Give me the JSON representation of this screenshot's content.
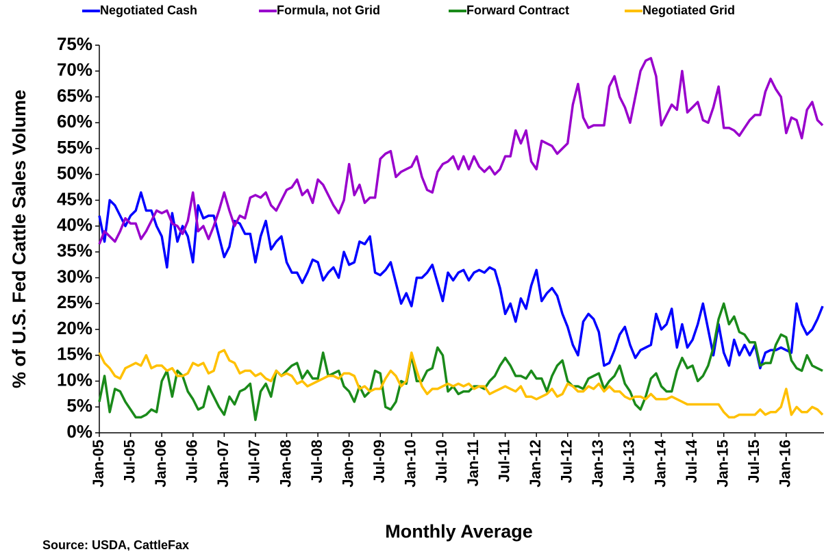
{
  "chart_data": {
    "type": "line",
    "x_label": "Monthly Average",
    "y_label": "% of U.S. Fed Cattle Sales Volume",
    "source": "Source: USDA, CattleFax",
    "legend": "top",
    "categories": [
      "Jan-05",
      null,
      null,
      null,
      null,
      null,
      "Jul-05",
      null,
      null,
      null,
      null,
      null,
      "Jan-06",
      null,
      null,
      null,
      null,
      null,
      "Jul-06",
      null,
      null,
      null,
      null,
      null,
      "Jan-07",
      null,
      null,
      null,
      null,
      null,
      "Jul-07",
      null,
      null,
      null,
      null,
      null,
      "Jan-08",
      null,
      null,
      null,
      null,
      null,
      "Jul-08",
      null,
      null,
      null,
      null,
      null,
      "Jan-09",
      null,
      null,
      null,
      null,
      null,
      "Jul-09",
      null,
      null,
      null,
      null,
      null,
      "Jan-10",
      null,
      null,
      null,
      null,
      null,
      "Jul-10",
      null,
      null,
      null,
      null,
      null,
      "Jan-11",
      null,
      null,
      null,
      null,
      null,
      "Jul-11",
      null,
      null,
      null,
      null,
      null,
      "Jan-12",
      null,
      null,
      null,
      null,
      null,
      "Jul-12",
      null,
      null,
      null,
      null,
      null,
      "Jan-13",
      null,
      null,
      null,
      null,
      null,
      "Jul-13",
      null,
      null,
      null,
      null,
      null,
      "Jan-14",
      null,
      null,
      null,
      null,
      null,
      "Jul-14",
      null,
      null,
      null,
      null,
      null,
      "Jan-15",
      null,
      null,
      null,
      null,
      null,
      "Jul-15",
      null,
      null,
      null,
      null,
      null,
      "Jan-16",
      null,
      null,
      null,
      null,
      null,
      null,
      null
    ],
    "ylim": [
      0,
      75
    ],
    "yticks": [
      {
        "value": 0,
        "label": "0%"
      },
      {
        "value": 5,
        "label": "5%"
      },
      {
        "value": 10,
        "label": "10%"
      },
      {
        "value": 15,
        "label": "15%"
      },
      {
        "value": 20,
        "label": "20%"
      },
      {
        "value": 25,
        "label": "25%"
      },
      {
        "value": 30,
        "label": "30%"
      },
      {
        "value": 35,
        "label": "35%"
      },
      {
        "value": 40,
        "label": "40%"
      },
      {
        "value": 45,
        "label": "45%"
      },
      {
        "value": 50,
        "label": "50%"
      },
      {
        "value": 55,
        "label": "55%"
      },
      {
        "value": 60,
        "label": "60%"
      },
      {
        "value": 65,
        "label": "65%"
      },
      {
        "value": 70,
        "label": "70%"
      },
      {
        "value": 75,
        "label": "75%"
      }
    ],
    "series": [
      {
        "name": "Negotiated Cash",
        "color": "#0000ff",
        "values": [
          42,
          37,
          45,
          44,
          42,
          40,
          42,
          43,
          46.5,
          43,
          43,
          40,
          38,
          32,
          42.5,
          37,
          40,
          38,
          33,
          44,
          41.5,
          42,
          42,
          38,
          34,
          36,
          41,
          40.5,
          38.5,
          38.5,
          33,
          38,
          41,
          35.5,
          37,
          38,
          33,
          31,
          31,
          29,
          31,
          33.5,
          33,
          29.5,
          31,
          32,
          30,
          35,
          32.5,
          33,
          37,
          36.5,
          38,
          31,
          30.5,
          31.5,
          33,
          29,
          25,
          27,
          24.5,
          30,
          30,
          31,
          32.5,
          29,
          25.5,
          31,
          29.5,
          31,
          31.5,
          29.5,
          31,
          31.5,
          31,
          32,
          31.5,
          28,
          23,
          25,
          21.5,
          26,
          24,
          28.5,
          31.5,
          25.5,
          27,
          28,
          26.5,
          23,
          20.5,
          17,
          15,
          21.5,
          23,
          22,
          19.5,
          13,
          13.5,
          16,
          19,
          20.5,
          17,
          14.5,
          16,
          16.5,
          17,
          23,
          20,
          21,
          24,
          16.5,
          21,
          16.5,
          18,
          21,
          25,
          20,
          15,
          21,
          15.5,
          13,
          18,
          15,
          17,
          15,
          17,
          12.5,
          15.5,
          16,
          16,
          16.5,
          16,
          15.5,
          25,
          21,
          19,
          20,
          22,
          24.5
        ]
      },
      {
        "name": "Formula, not Grid",
        "color": "#9900cc",
        "values": [
          36.5,
          39,
          38,
          37,
          39,
          41.5,
          40.5,
          40.5,
          37.5,
          39,
          41,
          43,
          42.5,
          43,
          40.5,
          40,
          38.5,
          41,
          46.5,
          39,
          40,
          37.5,
          40,
          43,
          46.5,
          43,
          40,
          42,
          41.5,
          45.5,
          46,
          45.5,
          46.5,
          44,
          43,
          45,
          47,
          47.5,
          49,
          46,
          47,
          44.5,
          49,
          48,
          46,
          44,
          42.5,
          45,
          52,
          46,
          48,
          44.5,
          45.5,
          45.5,
          53,
          54,
          54.5,
          49.5,
          50.5,
          51,
          51.5,
          53.5,
          49.5,
          47,
          46.5,
          50.5,
          52,
          52.5,
          53.5,
          51,
          53.5,
          51,
          53.5,
          51.5,
          50.5,
          51.5,
          50,
          51,
          53.5,
          53.5,
          58.5,
          56,
          58.5,
          52.5,
          51,
          56.5,
          56,
          55.5,
          54,
          55,
          56,
          63.5,
          67.5,
          61,
          59,
          59.5,
          59.5,
          59.5,
          67,
          69,
          65,
          63,
          60,
          65,
          70,
          72,
          72.5,
          69,
          59.5,
          61.5,
          63.5,
          62.5,
          70,
          62,
          63,
          64,
          60.5,
          60,
          63,
          67,
          59,
          59,
          58.5,
          57.5,
          59,
          60.5,
          61.5,
          61.5,
          66,
          68.5,
          66.5,
          65,
          58,
          61,
          60.5,
          57,
          62.5,
          64,
          60.5,
          59.5
        ]
      },
      {
        "name": "Forward Contract",
        "color": "#1a8a1a",
        "values": [
          6,
          11,
          4,
          8.5,
          8,
          6,
          4.5,
          3,
          3,
          3.5,
          4.5,
          4,
          10,
          12,
          7,
          12,
          11,
          8,
          6.5,
          4.5,
          5,
          9,
          7,
          5,
          3.5,
          7,
          5.5,
          8,
          8.5,
          9.5,
          2.5,
          8,
          9.5,
          7,
          12,
          11,
          12,
          13,
          13.5,
          10.5,
          12,
          10.5,
          10.5,
          15.5,
          11,
          11.5,
          12,
          9,
          8,
          6,
          9,
          7,
          8,
          12,
          11.5,
          5,
          4.5,
          6,
          10,
          9.5,
          15,
          10,
          10,
          12,
          12.5,
          16.5,
          15,
          8,
          9,
          7.5,
          8,
          8,
          9,
          9,
          8.5,
          10,
          11,
          13,
          14.5,
          13,
          11,
          11,
          10.5,
          12,
          10.5,
          10.5,
          8,
          11,
          13,
          14,
          10,
          9,
          9,
          8.5,
          10.5,
          11,
          11.5,
          8.5,
          10,
          11,
          13,
          9.5,
          8,
          5.5,
          4.5,
          7,
          10.5,
          11.5,
          9,
          8,
          8,
          12,
          14.5,
          12.5,
          13,
          10,
          11,
          13,
          16.5,
          22,
          25,
          21,
          22.5,
          19.5,
          19,
          17.5,
          17.5,
          13,
          13.5,
          13.5,
          17,
          19,
          18.5,
          14,
          12.5,
          12,
          15,
          13,
          12.5,
          12
        ]
      },
      {
        "name": "Negotiated Grid",
        "color": "#ffc000",
        "values": [
          15.5,
          13.5,
          12.5,
          11,
          10.5,
          12.5,
          13,
          13.5,
          13,
          15,
          12.5,
          13,
          13,
          12,
          12.5,
          11,
          11,
          11.5,
          13.5,
          13,
          13.5,
          11.5,
          12,
          15.5,
          16,
          14,
          13.5,
          11.5,
          12,
          12,
          11,
          11.5,
          10.5,
          10,
          12,
          11,
          11.5,
          11,
          9.5,
          10,
          9,
          9.5,
          10,
          10.5,
          11,
          11,
          10.5,
          11.5,
          11.5,
          11,
          8.5,
          9,
          8,
          8.5,
          8.5,
          10.5,
          12,
          11,
          9,
          10,
          15.5,
          12,
          9,
          7.5,
          8.5,
          8.5,
          9,
          9.5,
          9,
          9.5,
          9,
          9.5,
          8.5,
          9,
          9,
          7.5,
          8,
          8.5,
          9,
          8.5,
          8,
          9,
          7,
          7,
          6.5,
          7,
          7.5,
          8.5,
          7,
          7.5,
          9.5,
          9,
          8,
          8,
          9,
          8.5,
          9.5,
          8,
          9,
          8,
          8,
          7,
          6.5,
          7,
          7,
          6.5,
          7.5,
          6.5,
          6.5,
          6.5,
          7,
          6.5,
          6,
          5.5,
          5.5,
          5.5,
          5.5,
          5.5,
          5.5,
          5.5,
          4,
          3,
          3,
          3.5,
          3.5,
          3.5,
          3.5,
          4.5,
          3.5,
          4,
          4,
          5,
          8.5,
          3.5,
          5,
          4,
          4,
          5,
          4.5,
          3.5
        ]
      }
    ]
  }
}
